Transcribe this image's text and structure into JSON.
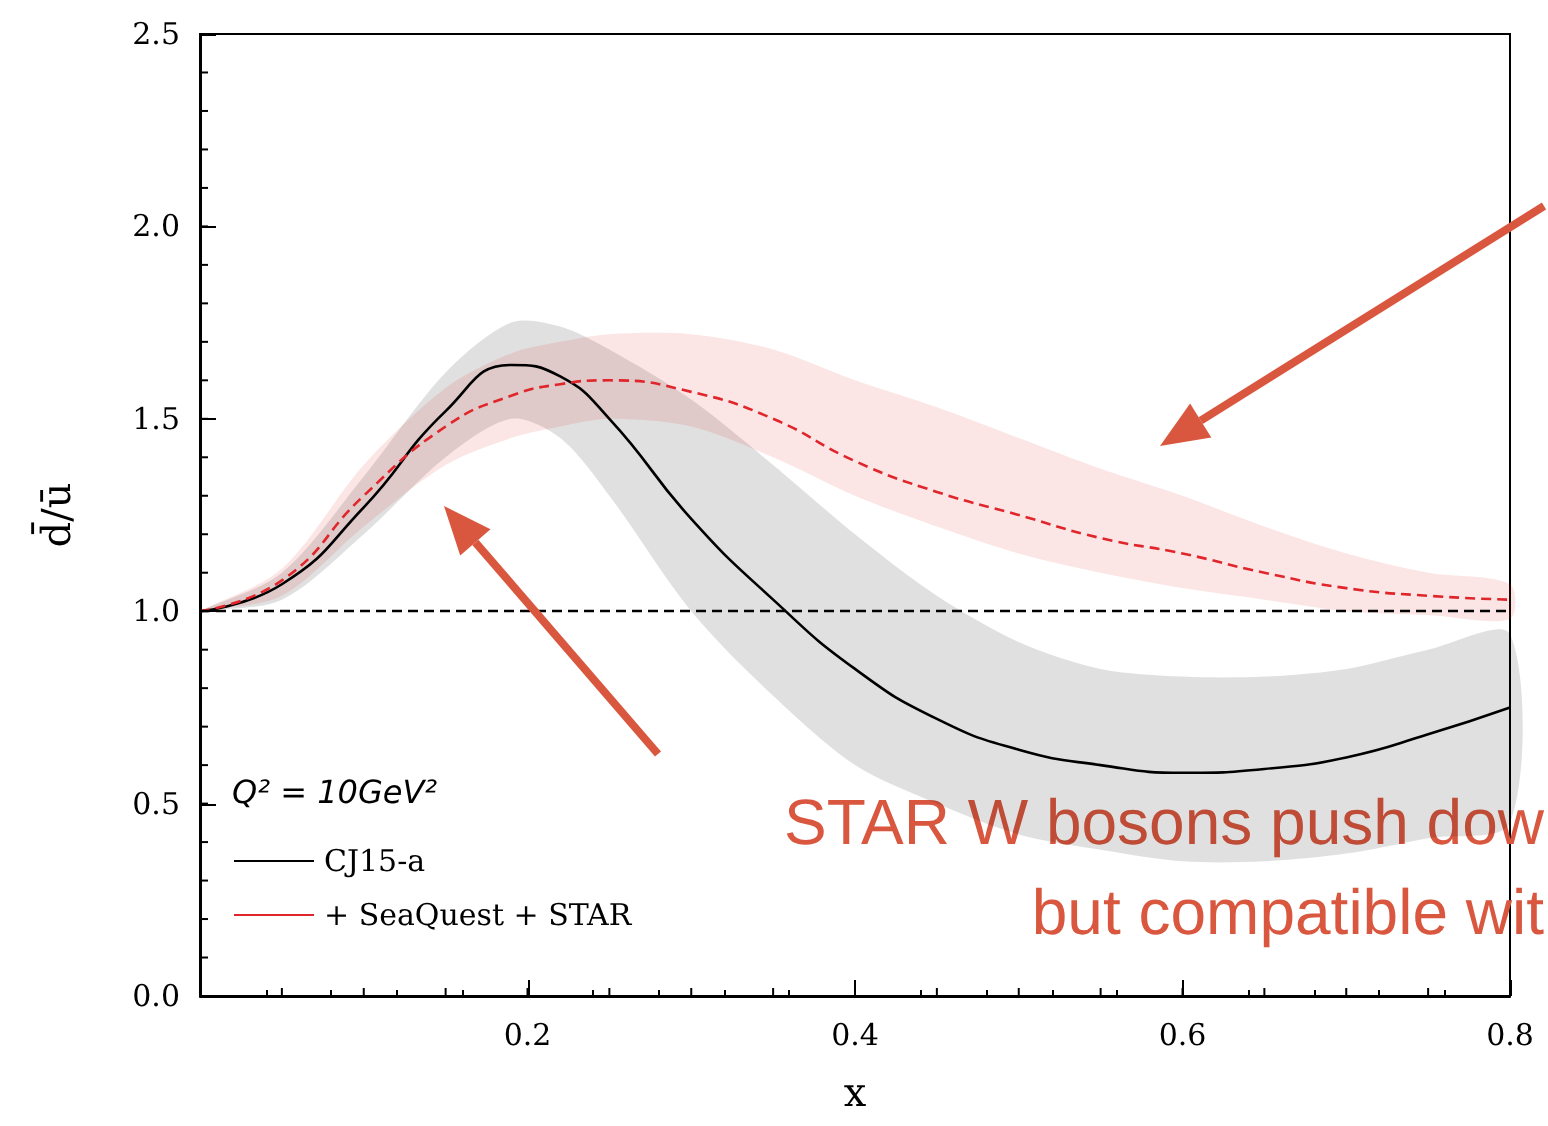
{
  "chart_data": {
    "type": "line",
    "xlabel": "x",
    "ylabel": "d̄/ū",
    "legend_title": "Q² = 10GeV²",
    "legend": "bottom left",
    "grid": false,
    "marker": "none",
    "xlim": [
      0,
      0.8
    ],
    "xticks": [
      0.2,
      0.4,
      0.6,
      0.8
    ],
    "ylim": [
      0,
      2.5
    ],
    "yticks": [
      {
        "value": 0,
        "label": "0.0"
      },
      0.5,
      {
        "value": 1,
        "label": "1.0"
      },
      1.5,
      {
        "value": 2,
        "label": "2.0"
      },
      2.5
    ],
    "x": [
      0,
      0.05,
      0.1,
      0.15,
      0.19,
      0.22,
      0.25,
      0.3,
      0.35,
      0.4,
      0.45,
      0.5,
      0.55,
      0.6,
      0.65,
      0.7,
      0.75,
      0.8
    ],
    "series": [
      {
        "name": "CJ15-a",
        "color": "#000000",
        "line_style": "solid",
        "values": [
          1.0,
          1.07,
          1.27,
          1.52,
          1.64,
          1.61,
          1.5,
          1.24,
          1.03,
          0.85,
          0.72,
          0.64,
          0.6,
          0.58,
          0.59,
          0.62,
          0.68,
          0.75
        ],
        "lower": [
          1.0,
          1.03,
          1.2,
          1.4,
          1.5,
          1.45,
          1.3,
          1.0,
          0.78,
          0.6,
          0.5,
          0.42,
          0.38,
          0.35,
          0.35,
          0.37,
          0.41,
          0.45
        ],
        "upper": [
          1.0,
          1.1,
          1.35,
          1.62,
          1.75,
          1.74,
          1.68,
          1.55,
          1.38,
          1.2,
          1.04,
          0.92,
          0.85,
          0.83,
          0.83,
          0.85,
          0.9,
          0.94
        ]
      },
      {
        "name": "+ SeaQuest + STAR",
        "color": "#e0262b",
        "line_style": "dashed",
        "values": [
          1.0,
          1.08,
          1.3,
          1.48,
          1.56,
          1.59,
          1.6,
          1.57,
          1.5,
          1.39,
          1.31,
          1.25,
          1.19,
          1.15,
          1.1,
          1.06,
          1.04,
          1.03
        ],
        "lower": [
          1.0,
          1.04,
          1.22,
          1.38,
          1.45,
          1.48,
          1.5,
          1.48,
          1.4,
          1.3,
          1.22,
          1.15,
          1.1,
          1.06,
          1.03,
          1.0,
          0.99,
          0.98
        ],
        "upper": [
          1.0,
          1.11,
          1.38,
          1.58,
          1.67,
          1.7,
          1.72,
          1.72,
          1.68,
          1.6,
          1.53,
          1.45,
          1.37,
          1.3,
          1.22,
          1.15,
          1.1,
          1.07
        ]
      }
    ],
    "ref_lines": [
      {
        "axis": "y",
        "value": 1.0,
        "color": "#000000",
        "line_style": "dashed"
      }
    ],
    "annotations": [
      "STAR W bosons push dow",
      "but compatible wit"
    ]
  }
}
